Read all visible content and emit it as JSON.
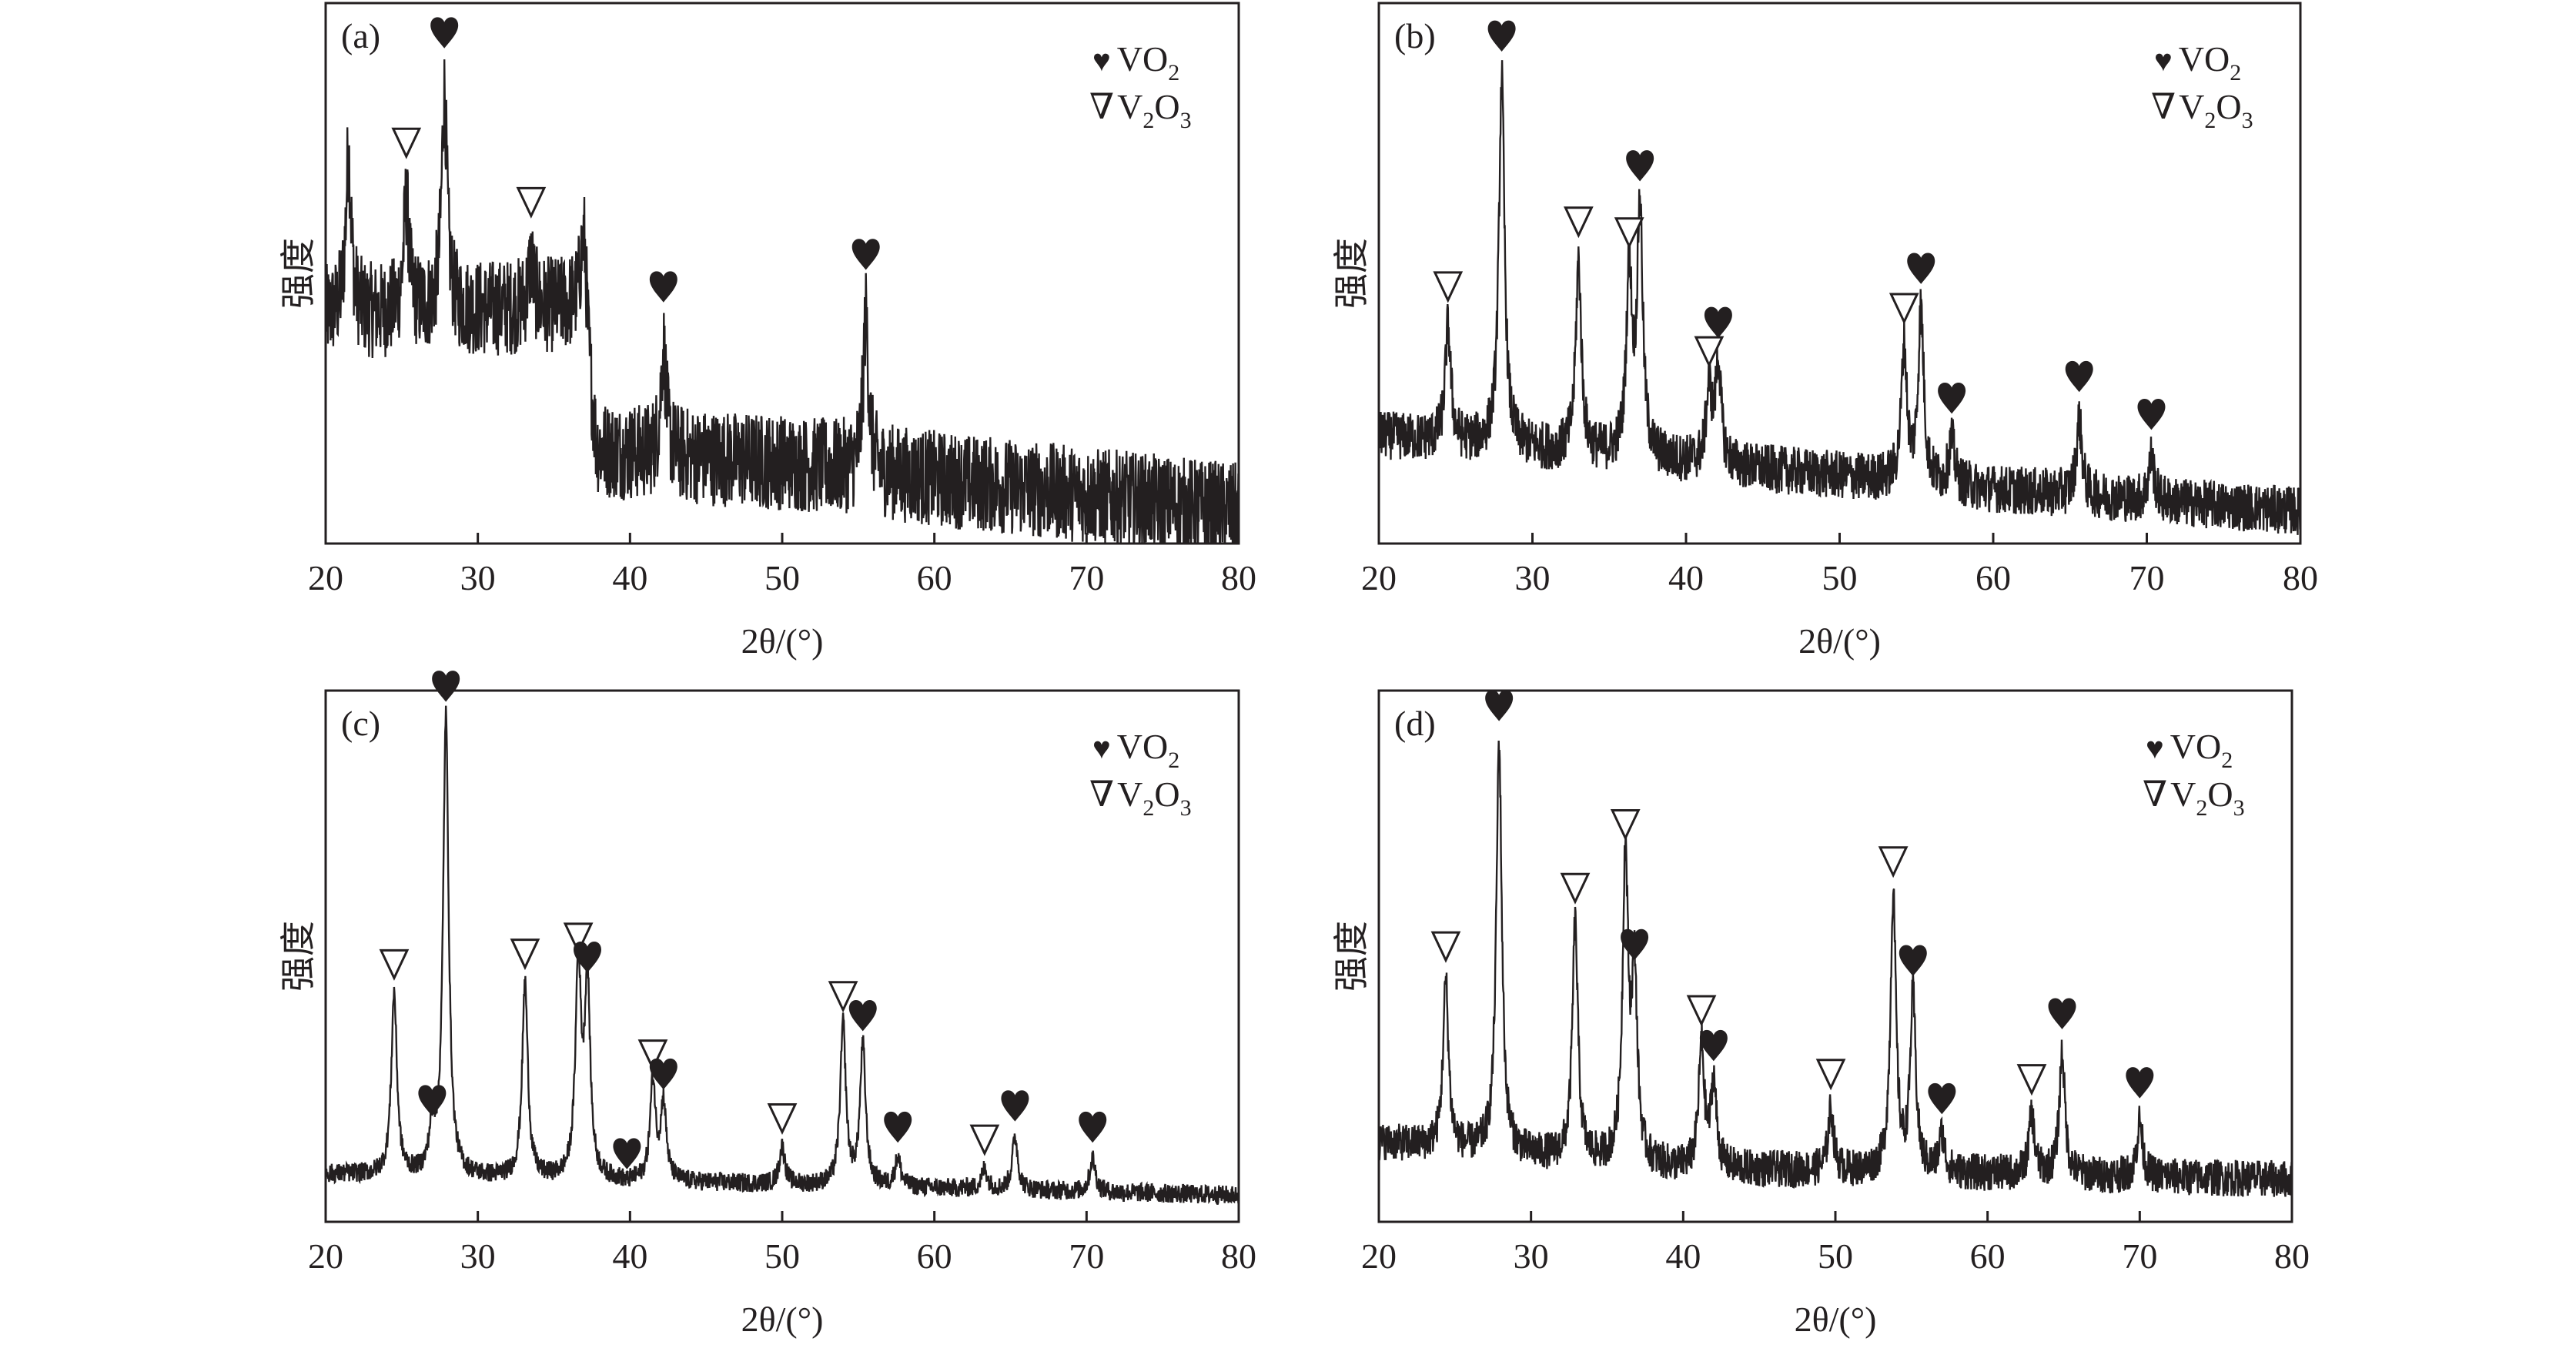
{
  "chart_data": [
    {
      "type": "line",
      "panel_label": "(a)",
      "xlabel": "2θ/(°)",
      "ylabel": "强度",
      "xlim": [
        20,
        80
      ],
      "xticks": [
        "20",
        "30",
        "40",
        "50",
        "60",
        "70",
        "80"
      ],
      "legend": [
        {
          "symbol": "♥",
          "name": "VO",
          "sub": "2"
        },
        {
          "symbol": "∇",
          "name": "V",
          "sub": "2",
          "name2": "O",
          "sub2": "3"
        }
      ],
      "legend_position": "top-right",
      "baseline": [
        [
          20,
          0.42
        ],
        [
          36.8,
          0.44
        ],
        [
          37.8,
          0.17
        ],
        [
          50,
          0.15
        ],
        [
          80,
          0.06
        ]
      ],
      "noise": 0.09,
      "peaks": [
        {
          "x": 21.5,
          "h": 0.72,
          "m": ""
        },
        {
          "x": 25.3,
          "h": 0.63,
          "m": "v"
        },
        {
          "x": 27.8,
          "h": 0.83,
          "m": "h"
        },
        {
          "x": 33.5,
          "h": 0.52,
          "m": "v"
        },
        {
          "x": 37.0,
          "h": 0.56,
          "m": ""
        },
        {
          "x": 42.2,
          "h": 0.36,
          "m": "h"
        },
        {
          "x": 55.5,
          "h": 0.42,
          "m": "h"
        }
      ]
    },
    {
      "type": "line",
      "panel_label": "(b)",
      "xlabel": "2θ/(°)",
      "ylabel": "强度",
      "xlim": [
        20,
        80
      ],
      "xticks": [
        "20",
        "30",
        "40",
        "50",
        "60",
        "70",
        "80"
      ],
      "legend": [
        {
          "symbol": "♥",
          "name": "VO",
          "sub": "2"
        },
        {
          "symbol": "∇",
          "name": "V",
          "sub": "2",
          "name2": "O",
          "sub2": "3"
        }
      ],
      "legend_position": "top-right",
      "baseline": [
        [
          20,
          0.2
        ],
        [
          40,
          0.15
        ],
        [
          60,
          0.1
        ],
        [
          80,
          0.06
        ]
      ],
      "noise": 0.045,
      "peaks": [
        {
          "x": 24.5,
          "h": 0.4,
          "m": "v"
        },
        {
          "x": 28.0,
          "h": 0.86,
          "m": "h"
        },
        {
          "x": 33.0,
          "h": 0.52,
          "m": "v"
        },
        {
          "x": 36.3,
          "h": 0.5,
          "m": "v"
        },
        {
          "x": 37.0,
          "h": 0.62,
          "m": "h"
        },
        {
          "x": 41.5,
          "h": 0.28,
          "m": "v"
        },
        {
          "x": 42.1,
          "h": 0.33,
          "m": "h"
        },
        {
          "x": 54.2,
          "h": 0.36,
          "m": "v"
        },
        {
          "x": 55.3,
          "h": 0.43,
          "m": "h"
        },
        {
          "x": 57.3,
          "h": 0.19,
          "m": "h"
        },
        {
          "x": 65.6,
          "h": 0.23,
          "m": "h"
        },
        {
          "x": 70.3,
          "h": 0.16,
          "m": "h"
        }
      ]
    },
    {
      "type": "line",
      "panel_label": "(c)",
      "xlabel": "2θ/(°)",
      "ylabel": "强度",
      "xlim": [
        20,
        80
      ],
      "xticks": [
        "20",
        "30",
        "40",
        "50",
        "60",
        "70",
        "80"
      ],
      "legend": [
        {
          "symbol": "♥",
          "name": "VO",
          "sub": "2"
        },
        {
          "symbol": "∇",
          "name": "V",
          "sub": "2",
          "name2": "O",
          "sub2": "3"
        }
      ],
      "legend_position": "top-right",
      "baseline": [
        [
          20,
          0.09
        ],
        [
          50,
          0.07
        ],
        [
          80,
          0.05
        ]
      ],
      "noise": 0.018,
      "peaks": [
        {
          "x": 24.5,
          "h": 0.43,
          "m": "v"
        },
        {
          "x": 27.0,
          "h": 0.17,
          "m": "h"
        },
        {
          "x": 27.9,
          "h": 0.95,
          "m": "h"
        },
        {
          "x": 33.1,
          "h": 0.45,
          "m": "v"
        },
        {
          "x": 36.6,
          "h": 0.48,
          "m": "v"
        },
        {
          "x": 37.2,
          "h": 0.44,
          "m": "h"
        },
        {
          "x": 39.8,
          "h": 0.07,
          "m": "h"
        },
        {
          "x": 41.5,
          "h": 0.26,
          "m": "v"
        },
        {
          "x": 42.2,
          "h": 0.22,
          "m": "h"
        },
        {
          "x": 50.0,
          "h": 0.14,
          "m": "v"
        },
        {
          "x": 54.0,
          "h": 0.37,
          "m": "v"
        },
        {
          "x": 55.3,
          "h": 0.33,
          "m": "h"
        },
        {
          "x": 57.6,
          "h": 0.12,
          "m": "h"
        },
        {
          "x": 63.3,
          "h": 0.1,
          "m": "v"
        },
        {
          "x": 65.3,
          "h": 0.16,
          "m": "h"
        },
        {
          "x": 70.4,
          "h": 0.12,
          "m": "h"
        }
      ]
    },
    {
      "type": "line",
      "panel_label": "(d)",
      "xlabel": "2θ/(°)",
      "ylabel": "强度",
      "xlim": [
        20,
        80
      ],
      "xticks": [
        "20",
        "30",
        "40",
        "50",
        "60",
        "70",
        "80"
      ],
      "legend": [
        {
          "symbol": "♥",
          "name": "VO",
          "sub": "2"
        },
        {
          "symbol": "∇",
          "name": "V",
          "sub": "2",
          "name2": "O",
          "sub2": "3"
        }
      ],
      "legend_position": "top-right",
      "baseline": [
        [
          20,
          0.15
        ],
        [
          40,
          0.1
        ],
        [
          80,
          0.08
        ]
      ],
      "noise": 0.035,
      "peaks": [
        {
          "x": 24.4,
          "h": 0.45,
          "m": "v"
        },
        {
          "x": 27.9,
          "h": 0.9,
          "m": "h"
        },
        {
          "x": 32.9,
          "h": 0.56,
          "m": "v"
        },
        {
          "x": 36.2,
          "h": 0.68,
          "m": "v"
        },
        {
          "x": 36.8,
          "h": 0.45,
          "m": "h"
        },
        {
          "x": 41.2,
          "h": 0.33,
          "m": "v"
        },
        {
          "x": 42.0,
          "h": 0.26,
          "m": "h"
        },
        {
          "x": 49.7,
          "h": 0.21,
          "m": "v"
        },
        {
          "x": 53.8,
          "h": 0.61,
          "m": "v"
        },
        {
          "x": 55.1,
          "h": 0.42,
          "m": "h"
        },
        {
          "x": 57.0,
          "h": 0.16,
          "m": "h"
        },
        {
          "x": 62.9,
          "h": 0.2,
          "m": "v"
        },
        {
          "x": 64.9,
          "h": 0.32,
          "m": "h"
        },
        {
          "x": 70.0,
          "h": 0.19,
          "m": "h"
        }
      ]
    }
  ]
}
